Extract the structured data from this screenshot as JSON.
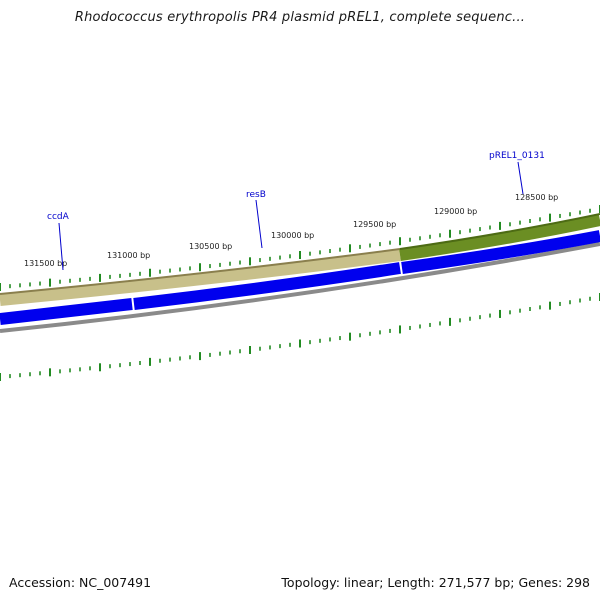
{
  "title": "Rhodococcus erythropolis PR4 plasmid pREL1, complete sequenc...",
  "footer": {
    "accession": "Accession: NC_007491",
    "summary": "Topology: linear; Length: 271,577 bp; Genes: 298"
  },
  "ticks": [
    {
      "label": "131500 bp",
      "pos": 131500
    },
    {
      "label": "131000 bp",
      "pos": 131000
    },
    {
      "label": "130500 bp",
      "pos": 130500
    },
    {
      "label": "130000 bp",
      "pos": 130000
    },
    {
      "label": "129500 bp",
      "pos": 129500
    },
    {
      "label": "129000 bp",
      "pos": 129000
    },
    {
      "label": "128500 bp",
      "pos": 128500
    }
  ],
  "genes": [
    {
      "name": "ccdA"
    },
    {
      "name": "resB"
    },
    {
      "name": "pREL1_0131"
    }
  ],
  "colors": {
    "backbone_tan": "#c8c08a",
    "backbone_green": "#6b8e23",
    "gene_blue": "#0000ee",
    "gray_track": "#808080",
    "tick_green": "#228b22",
    "label_blue": "#0000cc"
  }
}
